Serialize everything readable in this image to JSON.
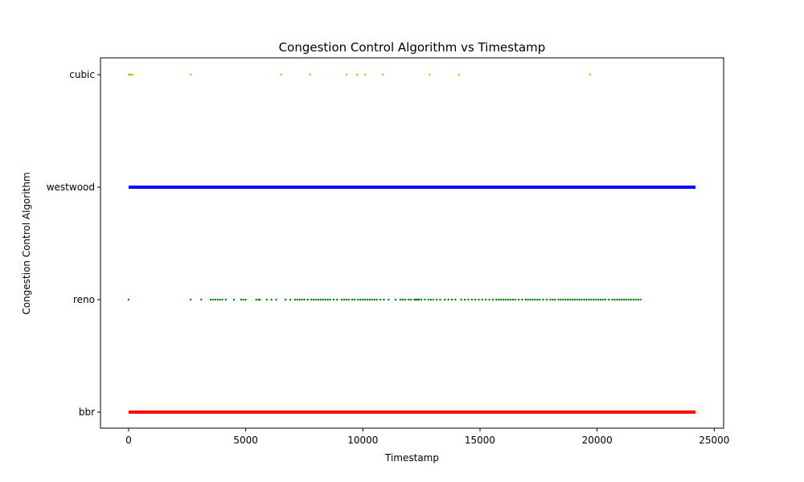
{
  "chart_data": {
    "type": "scatter",
    "title": "Congestion Control Algorithm vs Timestamp",
    "xlabel": "Timestamp",
    "ylabel": "Congestion Control Algorithm",
    "xlim": [
      -1200,
      25400
    ],
    "xticks": [
      0,
      5000,
      10000,
      15000,
      20000,
      25000
    ],
    "xtick_labels": [
      "0",
      "5000",
      "10000",
      "15000",
      "20000",
      "25000"
    ],
    "categories": [
      "bbr",
      "reno",
      "westwood",
      "cubic"
    ],
    "grid": false,
    "legend": "none",
    "series": [
      {
        "category": "cubic",
        "color": "#bfbf00",
        "x": [
          0,
          40,
          80,
          120,
          160,
          2650,
          6500,
          7750,
          9300,
          9750,
          10100,
          10850,
          12850,
          14100,
          19700
        ]
      },
      {
        "category": "westwood",
        "color": "#0000ff",
        "x_range": [
          0,
          24200
        ],
        "dense": true
      },
      {
        "category": "reno",
        "color": "#008000",
        "x": [
          0,
          2650,
          3100,
          3500,
          3600,
          3700,
          3800,
          3900,
          4000,
          4150,
          4500,
          4800,
          4900,
          5000,
          5450,
          5550,
          5600,
          5900,
          6100,
          6300,
          6700,
          6900,
          7100,
          7200,
          7300,
          7400,
          7500,
          7650,
          7800,
          7900,
          8000,
          8100,
          8200,
          8300,
          8400,
          8500,
          8600,
          8750,
          8900,
          9100,
          9200,
          9300,
          9400,
          9550,
          9650,
          9800,
          9900,
          10000,
          10100,
          10200,
          10300,
          10400,
          10500,
          10600,
          10750,
          10900,
          11100,
          11400,
          11600,
          11700,
          11800,
          11950,
          12050,
          12200,
          12250,
          12300,
          12350,
          12400,
          12500,
          12650,
          12800,
          12900,
          13000,
          13150,
          13300,
          13500,
          13650,
          13800,
          13950,
          14200,
          14350,
          14500,
          14650,
          14800,
          14950,
          15100,
          15250,
          15400,
          15550,
          15700,
          15800,
          15900,
          16000,
          16100,
          16200,
          16300,
          16400,
          16500,
          16650,
          16800,
          16950,
          17050,
          17150,
          17250,
          17350,
          17450,
          17550,
          17700,
          17850,
          18000,
          18100,
          18200,
          18350,
          18450,
          18550,
          18650,
          18750,
          18850,
          18950,
          19050,
          19150,
          19250,
          19350,
          19450,
          19550,
          19650,
          19750,
          19850,
          19950,
          20050,
          20150,
          20250,
          20350,
          20500,
          20650,
          20750,
          20850,
          20950,
          21050,
          21150,
          21250,
          21350,
          21450,
          21550,
          21650,
          21750,
          21850
        ]
      },
      {
        "category": "bbr",
        "color": "#ff0000",
        "x_range": [
          0,
          24200
        ],
        "dense": true
      }
    ]
  }
}
